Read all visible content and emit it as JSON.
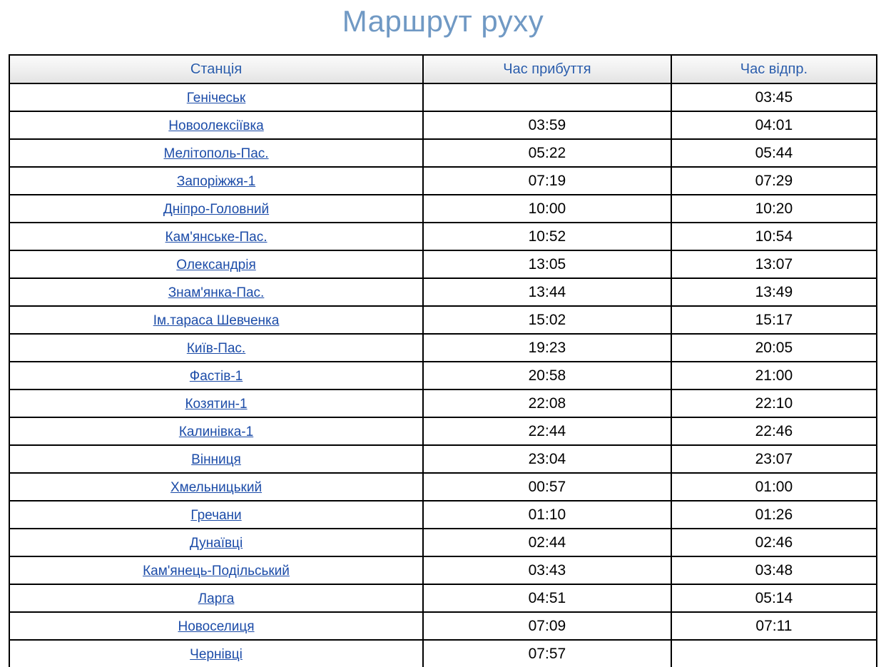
{
  "page": {
    "title": "Маршрут руху"
  },
  "colors": {
    "title_text": "#7099c4",
    "header_text": "#2a5caa",
    "station_link": "#1c4ca8",
    "table_border": "#000000",
    "header_background_top": "#fbfbfb",
    "header_background_bottom": "#e3e3e3"
  },
  "table": {
    "columns": [
      {
        "label": "Станція"
      },
      {
        "label": "Час прибуття"
      },
      {
        "label": "Час відпр."
      }
    ],
    "rows": [
      {
        "station": "Генічеськ",
        "arrival": "",
        "departure": "03:45"
      },
      {
        "station": "Новоолексіївка",
        "arrival": "03:59",
        "departure": "04:01"
      },
      {
        "station": "Мелітополь-Пас.",
        "arrival": "05:22",
        "departure": "05:44"
      },
      {
        "station": "Запоріжжя-1",
        "arrival": "07:19",
        "departure": "07:29"
      },
      {
        "station": "Дніпро-Головний",
        "arrival": "10:00",
        "departure": "10:20"
      },
      {
        "station": "Кам'янське-Пас.",
        "arrival": "10:52",
        "departure": "10:54"
      },
      {
        "station": "Олександрія",
        "arrival": "13:05",
        "departure": "13:07"
      },
      {
        "station": "Знам'янка-Пас.",
        "arrival": "13:44",
        "departure": "13:49"
      },
      {
        "station": "Ім.тараса Шевченка",
        "arrival": "15:02",
        "departure": "15:17"
      },
      {
        "station": "Київ-Пас.",
        "arrival": "19:23",
        "departure": "20:05"
      },
      {
        "station": "Фастів-1",
        "arrival": "20:58",
        "departure": "21:00"
      },
      {
        "station": "Козятин-1",
        "arrival": "22:08",
        "departure": "22:10"
      },
      {
        "station": "Калинівка-1",
        "arrival": "22:44",
        "departure": "22:46"
      },
      {
        "station": "Вінниця",
        "arrival": "23:04",
        "departure": "23:07"
      },
      {
        "station": "Хмельницький",
        "arrival": "00:57",
        "departure": "01:00"
      },
      {
        "station": "Гречани",
        "arrival": "01:10",
        "departure": "01:26"
      },
      {
        "station": "Дунаївці",
        "arrival": "02:44",
        "departure": "02:46"
      },
      {
        "station": "Кам'янець-Подільський",
        "arrival": "03:43",
        "departure": "03:48"
      },
      {
        "station": "Ларга",
        "arrival": "04:51",
        "departure": "05:14"
      },
      {
        "station": "Новоселиця",
        "arrival": "07:09",
        "departure": "07:11"
      },
      {
        "station": "Чернівці",
        "arrival": "07:57",
        "departure": ""
      }
    ]
  }
}
